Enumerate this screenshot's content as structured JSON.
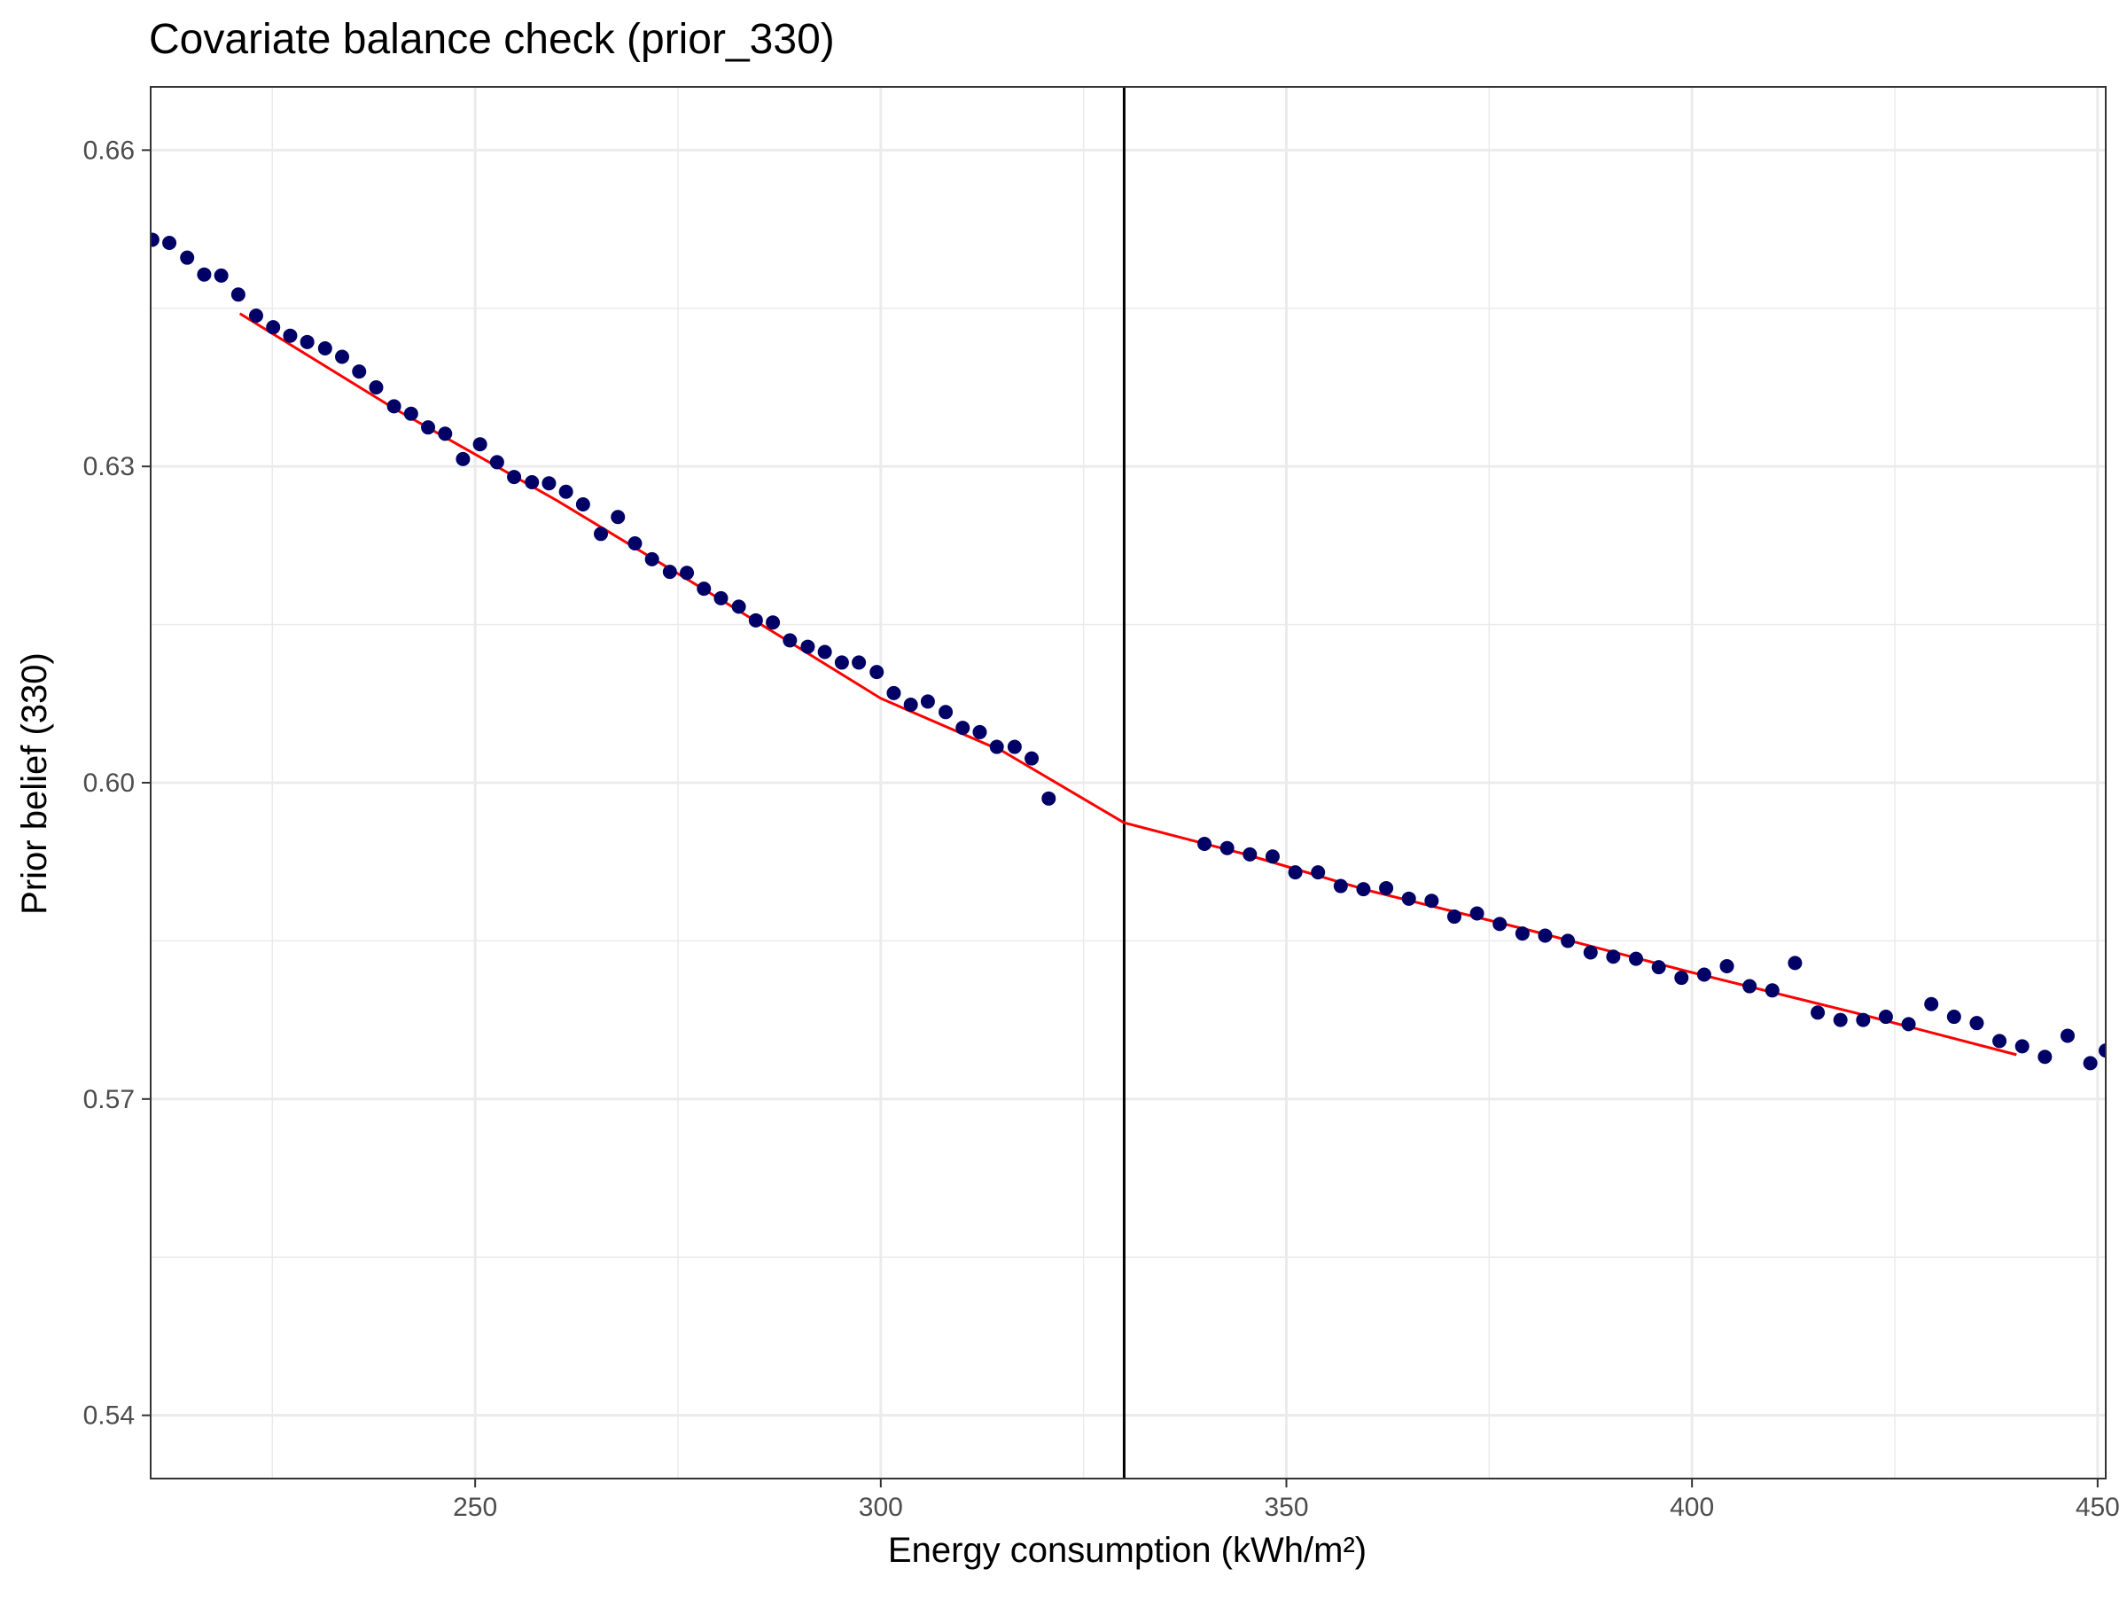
{
  "chart_data": {
    "type": "scatter",
    "title": "Covariate balance check (prior_330)",
    "xlabel": "Energy consumption (kWh/m²)",
    "ylabel": "Prior belief (330)",
    "xlim": [
      210,
      451
    ],
    "ylim": [
      0.534,
      0.666
    ],
    "xticks": [
      250,
      300,
      350,
      400,
      450
    ],
    "xtick_labels": [
      "250",
      "300",
      "350",
      "400",
      "450"
    ],
    "yticks": [
      0.54,
      0.57,
      0.6,
      0.63,
      0.66
    ],
    "ytick_labels": [
      "0.54",
      "0.57",
      "0.60",
      "0.63",
      "0.66"
    ],
    "grid": true,
    "cutoff": 330,
    "colors": {
      "points": "#000066",
      "fit": "#ff0000",
      "cutoff": "#000000",
      "grid": "#ebebeb"
    },
    "series": [
      {
        "kind": "points",
        "x": [
          210.2,
          212.3,
          214.5,
          216.6,
          218.7,
          220.8,
          223.0,
          225.1,
          227.2,
          229.3,
          231.5,
          233.6,
          235.7,
          237.8,
          240.0,
          242.1,
          244.2,
          246.3,
          248.5,
          250.6,
          252.7,
          254.8,
          257.0,
          259.1,
          261.2,
          263.3,
          265.5,
          267.6,
          269.7,
          271.8,
          274.0,
          276.1,
          278.2,
          280.3,
          282.5,
          284.6,
          286.7,
          288.8,
          291.0,
          293.1,
          295.2,
          297.3,
          299.5,
          301.6,
          303.7,
          305.8,
          308.0,
          310.1,
          312.2,
          314.3,
          316.5,
          318.6,
          320.7,
          339.9,
          342.7,
          345.5,
          348.3,
          351.1,
          353.9,
          356.7,
          359.5,
          362.3,
          365.1,
          367.9,
          370.7,
          373.5,
          376.3,
          379.1,
          381.9,
          384.7,
          387.5,
          390.3,
          393.1,
          395.9,
          398.7,
          401.5,
          404.3,
          407.1,
          409.9,
          412.7,
          415.5,
          418.3,
          421.1,
          423.9,
          426.7,
          429.5,
          432.3,
          435.1,
          437.9,
          440.7,
          443.5,
          446.3,
          449.1,
          451.0
        ],
        "y": [
          0.6515,
          0.6512,
          0.6498,
          0.6482,
          0.6481,
          0.6463,
          0.6443,
          0.6432,
          0.6424,
          0.6418,
          0.6412,
          0.6404,
          0.639,
          0.6375,
          0.6357,
          0.635,
          0.6337,
          0.6331,
          0.6307,
          0.6321,
          0.6304,
          0.629,
          0.6285,
          0.6284,
          0.6276,
          0.6264,
          0.6236,
          0.6252,
          0.6227,
          0.6212,
          0.62,
          0.6199,
          0.6184,
          0.6175,
          0.6167,
          0.6154,
          0.6152,
          0.6135,
          0.6129,
          0.6124,
          0.6114,
          0.6114,
          0.6105,
          0.6085,
          0.6074,
          0.6077,
          0.6067,
          0.6052,
          0.6048,
          0.6034,
          0.6034,
          0.6023,
          0.5985,
          0.5942,
          0.5938,
          0.5932,
          0.593,
          0.5915,
          0.5915,
          0.5902,
          0.5899,
          0.59,
          0.589,
          0.5888,
          0.5873,
          0.5876,
          0.5866,
          0.5857,
          0.5855,
          0.585,
          0.5839,
          0.5835,
          0.5833,
          0.5825,
          0.5815,
          0.5818,
          0.5826,
          0.5807,
          0.5803,
          0.5829,
          0.5782,
          0.5775,
          0.5775,
          0.5778,
          0.5771,
          0.579,
          0.5778,
          0.5772,
          0.5755,
          0.575,
          0.574,
          0.576,
          0.5734,
          0.5746
        ]
      },
      {
        "kind": "fit-left",
        "x": [
          221.0,
          240.0,
          260.0,
          280.0,
          300.0,
          315.0,
          330.0
        ],
        "y": [
          0.6445,
          0.6355,
          0.6268,
          0.6175,
          0.608,
          0.603,
          0.5962
        ]
      },
      {
        "kind": "fit-right",
        "x": [
          330.0,
          345.0,
          360.0,
          380.0,
          400.0,
          420.0,
          440.0
        ],
        "y": [
          0.5962,
          0.5932,
          0.5898,
          0.586,
          0.582,
          0.5782,
          0.5742
        ]
      }
    ]
  }
}
